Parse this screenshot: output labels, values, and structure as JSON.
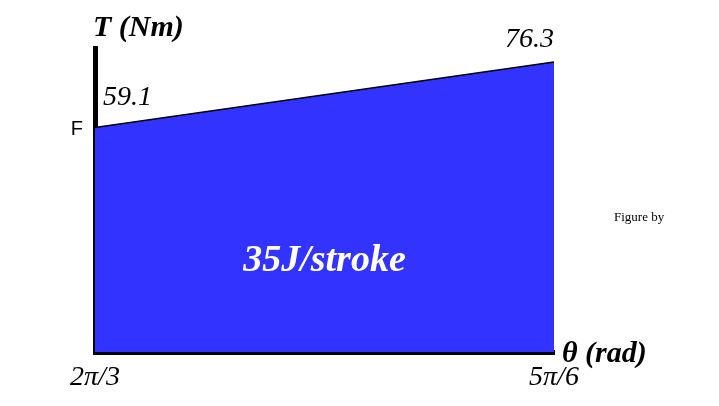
{
  "chart_data": {
    "type": "area",
    "x_label": "θ (rad)",
    "y_label": "T (Nm)",
    "x": [
      2.0944,
      2.618
    ],
    "values": [
      59.1,
      76.3
    ],
    "color": "#3333ff",
    "xlim": [
      2.0944,
      2.618
    ],
    "xticks": [
      {
        "value": 2.0944,
        "label": "2π/3"
      },
      {
        "value": 2.618,
        "label": "5π/6"
      }
    ],
    "ylim": [
      0,
      80
    ],
    "tick_labels": "x",
    "grid": false,
    "data_labels": true,
    "annotations": [
      "35J/stroke",
      "F",
      "Figure by"
    ]
  }
}
